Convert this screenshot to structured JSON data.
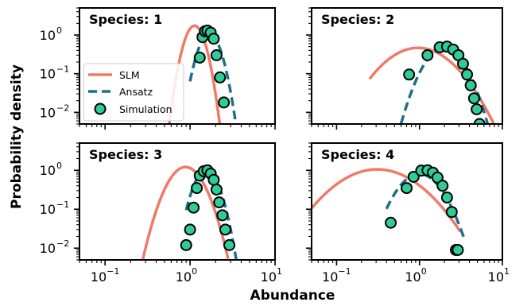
{
  "figure": {
    "xlabel": "Abundance",
    "ylabel": "Probability density"
  },
  "colors": {
    "slm": "#f07a68",
    "ansatz": "#1f6f8b",
    "sim_fill": "#2ecc96",
    "sim_edge": "#000000"
  },
  "legend": {
    "placement": "left-middle of top-left panel",
    "entries": [
      "SLM",
      "Ansatz",
      "Simulation"
    ]
  },
  "chart_data": [
    {
      "type": "line",
      "title": "Species: 1",
      "xscale": "log",
      "yscale": "log",
      "xlim": [
        0.05,
        10
      ],
      "ylim": [
        0.005,
        5
      ],
      "slm": {
        "type": "lognormal",
        "mu": 0.16,
        "sigma": 0.2,
        "x_range": [
          0.4,
          3.2
        ]
      },
      "ansatz": {
        "type": "lognormal",
        "mu": 0.57,
        "sigma": 0.22,
        "x_range": [
          1.0,
          3.5
        ]
      },
      "simulation": {
        "x": [
          1.3,
          1.4,
          1.5,
          1.6,
          1.75,
          1.9,
          2.05,
          2.25,
          2.5
        ],
        "y": [
          0.26,
          0.88,
          1.25,
          1.3,
          1.15,
          0.8,
          0.3,
          0.08,
          0.018
        ]
      }
    },
    {
      "type": "line",
      "title": "Species: 2",
      "xscale": "log",
      "yscale": "log",
      "xlim": [
        0.05,
        10
      ],
      "ylim": [
        0.005,
        5
      ],
      "slm": {
        "type": "lognormal",
        "mu": 0.45,
        "sigma": 0.7,
        "x_range": [
          0.25,
          9
        ]
      },
      "ansatz": {
        "type": "lognormal",
        "mu": 0.85,
        "sigma": 0.4,
        "x_range": [
          0.6,
          9
        ]
      },
      "simulation": {
        "x": [
          0.75,
          1.25,
          1.75,
          2.15,
          2.55,
          2.95,
          3.35,
          3.75,
          4.15,
          4.55,
          4.9,
          5.3
        ],
        "y": [
          0.095,
          0.3,
          0.48,
          0.5,
          0.42,
          0.3,
          0.18,
          0.095,
          0.05,
          0.023,
          0.012,
          0.005
        ]
      }
    },
    {
      "type": "line",
      "title": "Species: 3",
      "xscale": "log",
      "yscale": "log",
      "xlim": [
        0.05,
        10
      ],
      "ylim": [
        0.005,
        5
      ],
      "slm": {
        "type": "lognormal",
        "mu": 0.0,
        "sigma": 0.35,
        "x_range": [
          0.25,
          2.8
        ]
      },
      "ansatz": {
        "type": "lognormal",
        "mu": 0.5,
        "sigma": 0.25,
        "x_range": [
          0.9,
          3.5
        ]
      },
      "simulation": {
        "x": [
          0.9,
          1.0,
          1.1,
          1.2,
          1.3,
          1.45,
          1.6,
          1.75,
          1.9,
          2.05,
          2.2,
          2.4,
          2.6,
          2.9
        ],
        "y": [
          0.012,
          0.03,
          0.11,
          0.35,
          0.73,
          0.95,
          1.0,
          0.82,
          0.57,
          0.32,
          0.15,
          0.07,
          0.03,
          0.012
        ]
      }
    },
    {
      "type": "line",
      "title": "Species: 4",
      "xscale": "log",
      "yscale": "log",
      "xlim": [
        0.05,
        10
      ],
      "ylim": [
        0.005,
        5
      ],
      "slm": {
        "type": "lognormal",
        "mu": -0.45,
        "sigma": 0.85,
        "x_range": [
          0.05,
          3.1
        ]
      },
      "ansatz": {
        "type": "lognormal",
        "mu": 0.2,
        "sigma": 0.45,
        "x_range": [
          0.4,
          3.5
        ]
      },
      "simulation": {
        "x": [
          0.45,
          0.7,
          0.85,
          1.05,
          1.25,
          1.45,
          1.65,
          1.9,
          2.15,
          2.45,
          2.75,
          2.9
        ],
        "y": [
          0.045,
          0.35,
          0.68,
          0.98,
          1.0,
          0.87,
          0.65,
          0.4,
          0.2,
          0.085,
          0.009,
          0.009
        ]
      }
    }
  ],
  "ticks": {
    "x": [
      "10",
      "10",
      "10"
    ],
    "x_exp": [
      "−1",
      "0",
      "1"
    ],
    "y": [
      "10",
      "10",
      "10"
    ],
    "y_exp": [
      "0",
      "−1",
      "−2"
    ]
  }
}
